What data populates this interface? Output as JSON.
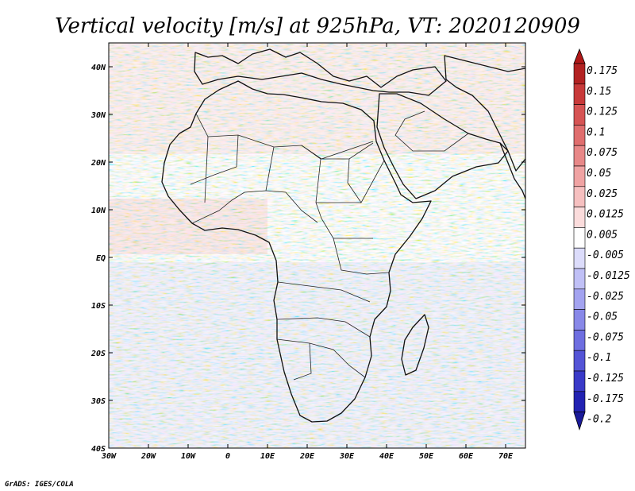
{
  "title": "Vertical velocity [m/s] at 925hPa, VT: 2020120909",
  "credit": "GrADS: IGES/COLA",
  "map": {
    "lon_range": [
      -30,
      75
    ],
    "lat_range": [
      -40,
      45
    ],
    "x_ticks": [
      {
        "lon": -30,
        "label": "30W"
      },
      {
        "lon": -20,
        "label": "20W"
      },
      {
        "lon": -10,
        "label": "10W"
      },
      {
        "lon": 0,
        "label": "0"
      },
      {
        "lon": 10,
        "label": "10E"
      },
      {
        "lon": 20,
        "label": "20E"
      },
      {
        "lon": 30,
        "label": "30E"
      },
      {
        "lon": 40,
        "label": "40E"
      },
      {
        "lon": 50,
        "label": "50E"
      },
      {
        "lon": 60,
        "label": "60E"
      },
      {
        "lon": 70,
        "label": "70E"
      }
    ],
    "y_ticks": [
      {
        "lat": 40,
        "label": "40N"
      },
      {
        "lat": 30,
        "label": "30N"
      },
      {
        "lat": 20,
        "label": "20N"
      },
      {
        "lat": 10,
        "label": "10N"
      },
      {
        "lat": 0,
        "label": "EQ"
      },
      {
        "lat": -10,
        "label": "10S"
      },
      {
        "lat": -20,
        "label": "20S"
      },
      {
        "lat": -30,
        "label": "30S"
      },
      {
        "lat": -40,
        "label": "40S"
      }
    ]
  },
  "colorbar": {
    "levels": [
      {
        "label": "0.175",
        "color": "#b22222"
      },
      {
        "label": "0.15",
        "color": "#c83a3a"
      },
      {
        "label": "0.125",
        "color": "#d65454"
      },
      {
        "label": "0.1",
        "color": "#e06e6e"
      },
      {
        "label": "0.075",
        "color": "#e88888"
      },
      {
        "label": "0.05",
        "color": "#f0a3a3"
      },
      {
        "label": "0.025",
        "color": "#f6c0c0"
      },
      {
        "label": "0.0125",
        "color": "#fbdcdc"
      },
      {
        "label": "0.005",
        "color": "#ffffff"
      },
      {
        "label": "-0.005",
        "color": "#dcdcfb"
      },
      {
        "label": "-0.0125",
        "color": "#c0c0f6"
      },
      {
        "label": "-0.025",
        "color": "#a3a3f0"
      },
      {
        "label": "-0.05",
        "color": "#8888e8"
      },
      {
        "label": "-0.075",
        "color": "#6e6ee0"
      },
      {
        "label": "-0.1",
        "color": "#5454d6"
      },
      {
        "label": "-0.125",
        "color": "#3a3ac8"
      },
      {
        "label": "-0.175",
        "color": "#2222b2"
      },
      {
        "label": "-0.2",
        "color": "#1a1a99"
      }
    ],
    "top_color": "#b01818",
    "bottom_color": "#1a1a99"
  }
}
